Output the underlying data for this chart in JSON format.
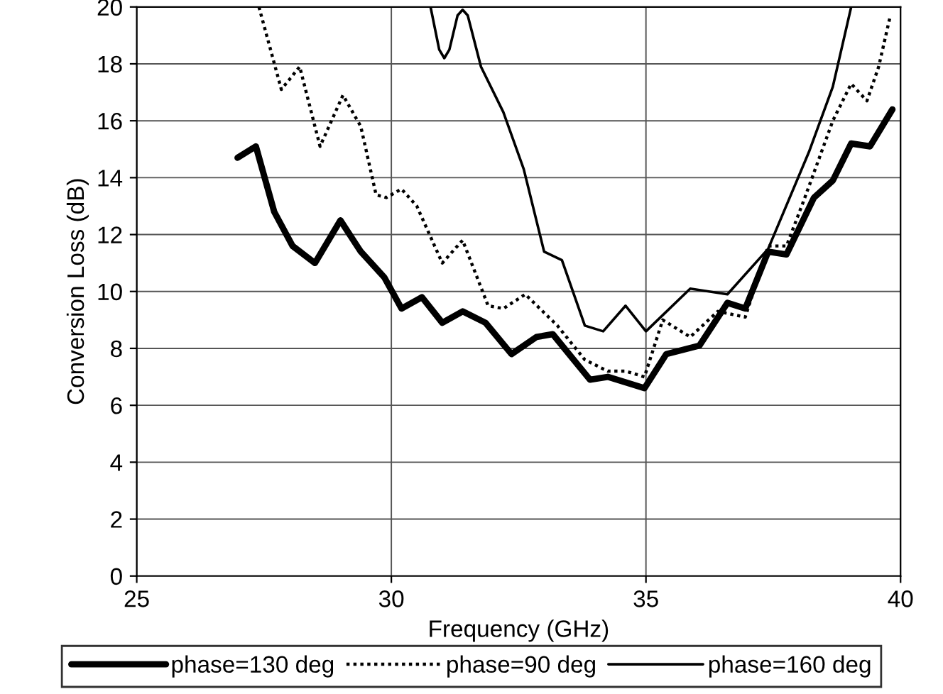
{
  "chart_data": {
    "type": "line",
    "xlabel": "Frequency (GHz)",
    "ylabel": "Conversion Loss (dB)",
    "xlim": [
      25,
      40
    ],
    "xticks": [
      25,
      30,
      35,
      40
    ],
    "ylim": [
      0,
      20
    ],
    "yticks": [
      0,
      2,
      4,
      6,
      8,
      10,
      12,
      14,
      16,
      18,
      20
    ],
    "grid": true,
    "legend": "bottom",
    "marker": "none",
    "series": [
      {
        "name": "phase=130 deg",
        "color": "#000000",
        "line_style": "solid",
        "x": [
          26.98,
          27.34,
          27.7,
          28.06,
          28.5,
          29.0,
          29.4,
          29.86,
          30.2,
          30.6,
          31.0,
          31.4,
          31.85,
          32.36,
          32.85,
          33.17,
          33.9,
          34.25,
          34.97,
          35.4,
          36.05,
          36.6,
          36.95,
          37.4,
          37.76,
          38.3,
          38.67,
          39.03,
          39.4,
          39.84
        ],
        "values": [
          14.7,
          15.1,
          12.8,
          11.6,
          11.0,
          12.5,
          11.4,
          10.5,
          9.4,
          9.8,
          8.9,
          9.3,
          8.9,
          7.8,
          8.4,
          8.5,
          6.9,
          7.0,
          6.6,
          7.8,
          8.1,
          9.6,
          9.4,
          11.4,
          11.3,
          13.3,
          13.9,
          15.2,
          15.1,
          16.4
        ]
      },
      {
        "name": "phase=90 deg",
        "color": "#000000",
        "line_style": "dotted",
        "x": [
          27.4,
          27.84,
          28.2,
          28.6,
          29.05,
          29.4,
          29.7,
          29.9,
          30.2,
          30.5,
          31.0,
          31.4,
          31.9,
          32.2,
          32.63,
          33.26,
          33.8,
          34.25,
          34.6,
          34.97,
          35.33,
          35.87,
          36.41,
          36.95,
          37.4,
          37.76,
          38.1,
          38.67,
          39.03,
          39.34,
          39.57,
          39.8
        ],
        "values": [
          20.0,
          17.1,
          17.9,
          15.1,
          16.9,
          15.8,
          13.4,
          13.3,
          13.6,
          13.0,
          11.0,
          11.8,
          9.5,
          9.4,
          9.9,
          8.8,
          7.6,
          7.2,
          7.2,
          7.0,
          9.0,
          8.4,
          9.3,
          9.1,
          11.6,
          11.6,
          13.2,
          16.0,
          17.3,
          16.7,
          17.9,
          19.7
        ]
      },
      {
        "name": "phase=160 deg",
        "color": "#000000",
        "line_style": "solid",
        "x": [
          30.77,
          30.94,
          31.04,
          31.14,
          31.3,
          31.4,
          31.5,
          31.76,
          32.2,
          32.6,
          33.0,
          33.35,
          33.8,
          34.16,
          34.6,
          35.0,
          35.87,
          36.6,
          37.4,
          38.2,
          38.67,
          39.03
        ],
        "values": [
          20.0,
          18.5,
          18.2,
          18.5,
          19.7,
          19.9,
          19.7,
          17.9,
          16.3,
          14.3,
          11.4,
          11.1,
          8.8,
          8.6,
          9.5,
          8.6,
          10.1,
          9.9,
          11.5,
          14.9,
          17.2,
          20.0
        ]
      }
    ]
  }
}
